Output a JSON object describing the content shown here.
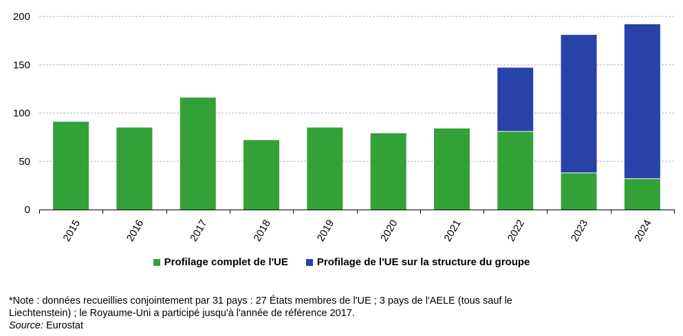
{
  "chart_data": {
    "type": "bar",
    "stacked": true,
    "categories": [
      "2015",
      "2016",
      "2017",
      "2018",
      "2019",
      "2020",
      "2021",
      "2022",
      "2023",
      "2024"
    ],
    "series": [
      {
        "name": "Profilage complet de l'UE",
        "color": "#34a038",
        "values": [
          91,
          85,
          116,
          72,
          85,
          79,
          84,
          81,
          38,
          32
        ]
      },
      {
        "name": "Profilage de l'UE sur la structure du groupe",
        "color": "#2742a8",
        "values": [
          0,
          0,
          0,
          0,
          0,
          0,
          0,
          66,
          143,
          160
        ]
      }
    ],
    "title": "",
    "xlabel": "",
    "ylabel": "",
    "ylim": [
      0,
      200
    ],
    "yticks": [
      "0",
      "50",
      "100",
      "150",
      "200"
    ],
    "grid": true,
    "legend_position": "bottom"
  },
  "note": {
    "line1": "*Note : données recueillies conjointement par 31 pays : 27 États membres de l'UE ; 3 pays de l'AELE (tous sauf le",
    "line2": "Liechtenstein) ; le Royaume-Uni a participé jusqu'à l'année de référence 2017.",
    "source_label": "Source:",
    "source_value": " Eurostat"
  }
}
